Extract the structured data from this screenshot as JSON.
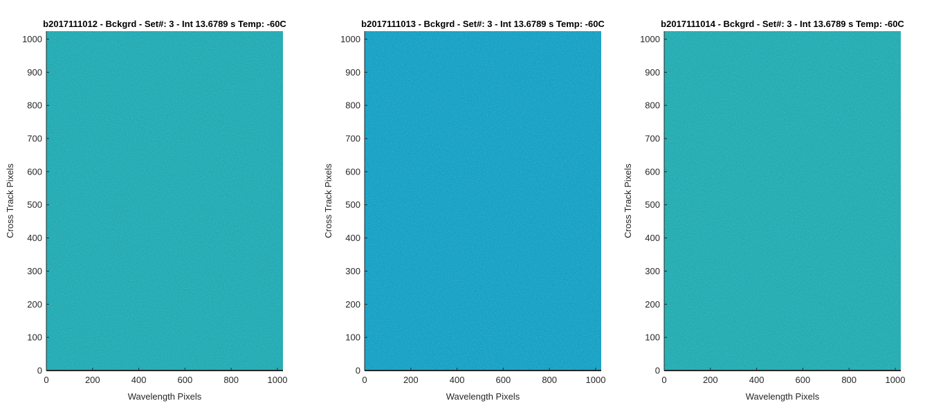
{
  "chart_data": [
    {
      "type": "heatmap",
      "title": "b2017111012 - Bckgrd - Set#: 3 - Int 13.6789 s Temp: -60C",
      "xlabel": "Wavelength Pixels",
      "ylabel": "Cross Track Pixels",
      "xlim": [
        0,
        1024
      ],
      "ylim": [
        0,
        1024
      ],
      "xticks": [
        0,
        200,
        400,
        600,
        800,
        1000
      ],
      "yticks": [
        0,
        100,
        200,
        300,
        400,
        500,
        600,
        700,
        800,
        900,
        1000
      ],
      "base_color": "#1fa8b4",
      "noise_color": "#4cc097",
      "grid": false
    },
    {
      "type": "heatmap",
      "title": "b2017111013 - Bckgrd - Set#: 3 - Int 13.6789 s Temp: -60C",
      "xlabel": "Wavelength Pixels",
      "ylabel": "Cross Track Pixels",
      "xlim": [
        0,
        1024
      ],
      "ylim": [
        0,
        1024
      ],
      "xticks": [
        0,
        200,
        400,
        600,
        800,
        1000
      ],
      "yticks": [
        0,
        100,
        200,
        300,
        400,
        500,
        600,
        700,
        800,
        900,
        1000
      ],
      "base_color": "#139ec6",
      "noise_color": "#2aaeae",
      "grid": false
    },
    {
      "type": "heatmap",
      "title": "b2017111014 - Bckgrd - Set#: 3 - Int 13.6789 s Temp: -60C",
      "xlabel": "Wavelength Pixels",
      "ylabel": "Cross Track Pixels",
      "xlim": [
        0,
        1024
      ],
      "ylim": [
        0,
        1024
      ],
      "xticks": [
        0,
        200,
        400,
        600,
        800,
        1000
      ],
      "yticks": [
        0,
        100,
        200,
        300,
        400,
        500,
        600,
        700,
        800,
        900,
        1000
      ],
      "base_color": "#20aab2",
      "noise_color": "#58c48e",
      "grid": false
    }
  ]
}
